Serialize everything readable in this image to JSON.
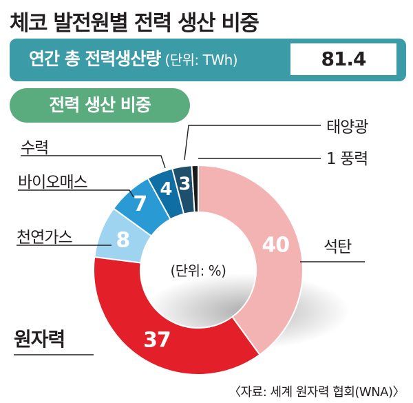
{
  "header": {
    "title": "체코 발전원별 전력 생산 비중"
  },
  "total": {
    "label": "연간 총 전력생산량",
    "unit": "(단위: TWh)",
    "value": "81.4"
  },
  "subtitle": "전력 생산 비중",
  "source": "〈자료: 세계 원자력 협회(WNA)〉",
  "colors": {
    "teal_bar": "#3b9ba7",
    "green_pill": "#5aac7e"
  },
  "chart_data": {
    "type": "pie",
    "donut": true,
    "center_label": "(단위: %)",
    "start": "top, clockwise",
    "slices": [
      {
        "name": "석탄",
        "value": 40,
        "label": "40",
        "color": "#f4b3b3",
        "label_color": "#ffffff"
      },
      {
        "name": "원자력",
        "value": 37,
        "label": "37",
        "color": "#e3202a",
        "label_color": "#ffffff"
      },
      {
        "name": "천연가스",
        "value": 8,
        "label": "8",
        "color": "#9fd4f1",
        "label_color": "#ffffff"
      },
      {
        "name": "바이오매스",
        "value": 7,
        "label": "7",
        "color": "#2a9ad5",
        "label_color": "#ffffff"
      },
      {
        "name": "수력",
        "value": 4,
        "label": "4",
        "color": "#0f6fa5",
        "label_color": "#ffffff"
      },
      {
        "name": "태양광",
        "value": 3,
        "label": "3",
        "color": "#1e4f6d",
        "label_color": "#ffffff"
      },
      {
        "name": "풍력",
        "value": 1,
        "label": "1",
        "color": "#1a1a1a",
        "label_color": "#231f20"
      }
    ]
  }
}
